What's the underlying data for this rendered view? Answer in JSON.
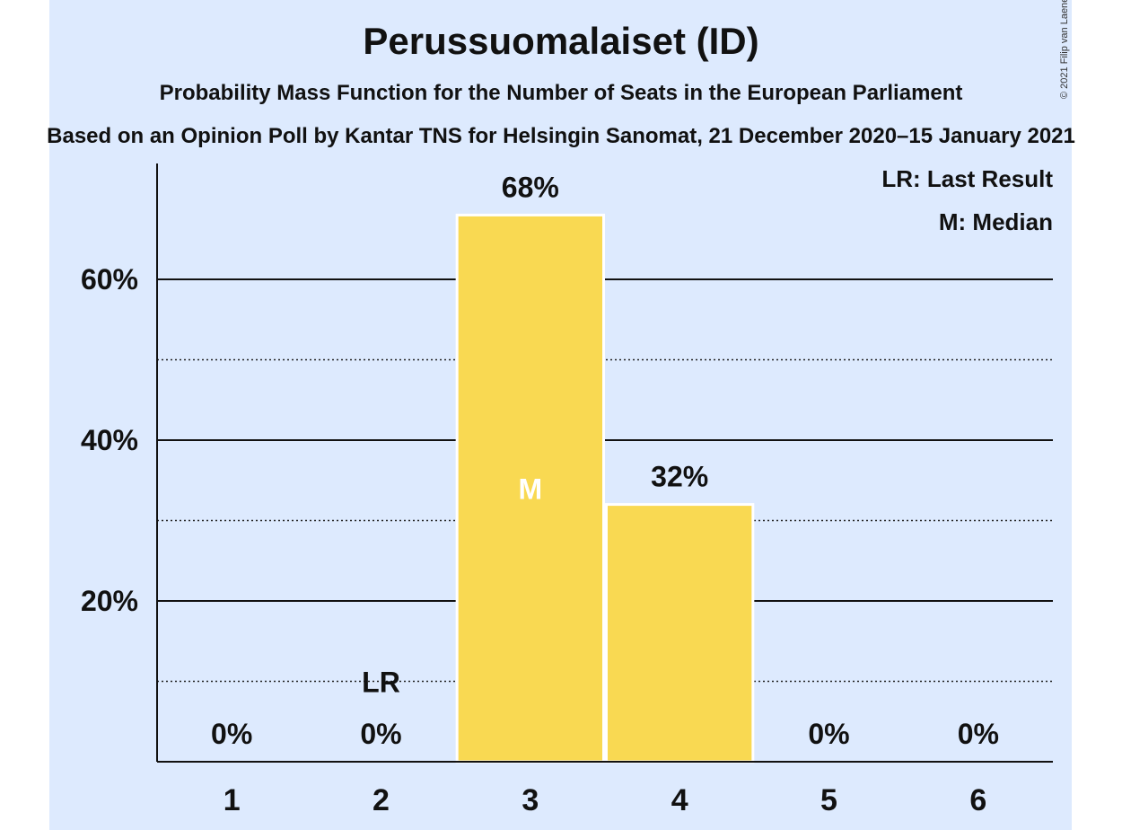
{
  "header": {
    "title": "Perussuomalaiset (ID)",
    "subtitle": "Probability Mass Function for the Number of Seats in the European Parliament",
    "source": "Based on an Opinion Poll by Kantar TNS for Helsingin Sanomat, 21 December 2020–15 January 2021",
    "copyright": "© 2021 Filip van Laenen"
  },
  "legend": {
    "last_result": "LR: Last Result",
    "median": "M: Median"
  },
  "colors": {
    "panel_background": "#ddeafe",
    "bar": "#f9d952",
    "median_marker": "#ffffff"
  },
  "chart_data": {
    "type": "bar",
    "categories": [
      "1",
      "2",
      "3",
      "4",
      "5",
      "6"
    ],
    "values": [
      0,
      0,
      68,
      32,
      0,
      0
    ],
    "value_labels": [
      "0%",
      "0%",
      "68%",
      "32%",
      "0%",
      "0%"
    ],
    "ylim": [
      0,
      74
    ],
    "yticks": [
      20,
      40,
      60
    ],
    "ytick_labels": [
      "20%",
      "40%",
      "60%"
    ],
    "minor_gridlines": [
      10,
      30,
      50
    ],
    "last_result_category": "2",
    "last_result_label": "LR",
    "median_category": "3",
    "median_label": "M",
    "grid": true,
    "legend_position": "top-right"
  }
}
